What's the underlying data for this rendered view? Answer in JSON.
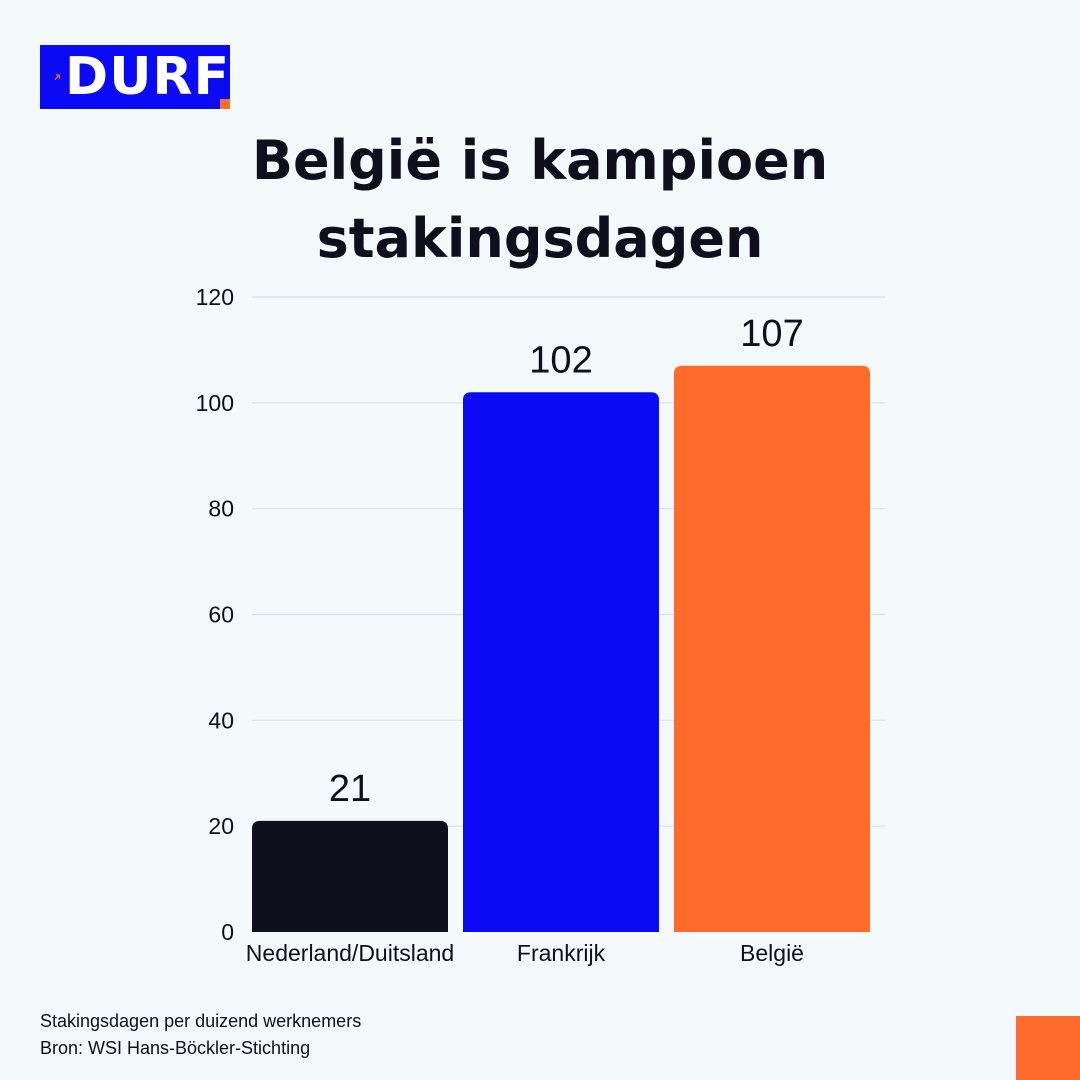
{
  "brand": {
    "logo_text": "DURF",
    "logo_color": "#0a0af5",
    "accent_color": "#ff6b2b"
  },
  "title": {
    "line1": "België is kampioen",
    "line2": "stakingsdagen"
  },
  "chart_data": {
    "type": "bar",
    "title": "België is kampioen stakingsdagen",
    "categories": [
      "Nederland/Duitsland",
      "Frankrijk",
      "België"
    ],
    "values": [
      21,
      102,
      107
    ],
    "value_labels": [
      "21",
      "102",
      "107"
    ],
    "colors": [
      "#0e0e1c",
      "#0a0af5",
      "#ff6b2b"
    ],
    "xlabel": "",
    "ylabel": "",
    "ylim": [
      0,
      120
    ],
    "yticks": [
      0,
      20,
      40,
      60,
      80,
      100,
      120
    ],
    "grid": true
  },
  "footer": {
    "note": "Stakingsdagen per duizend werknemers",
    "source": "Bron: WSI Hans-Böckler-Stichting"
  }
}
